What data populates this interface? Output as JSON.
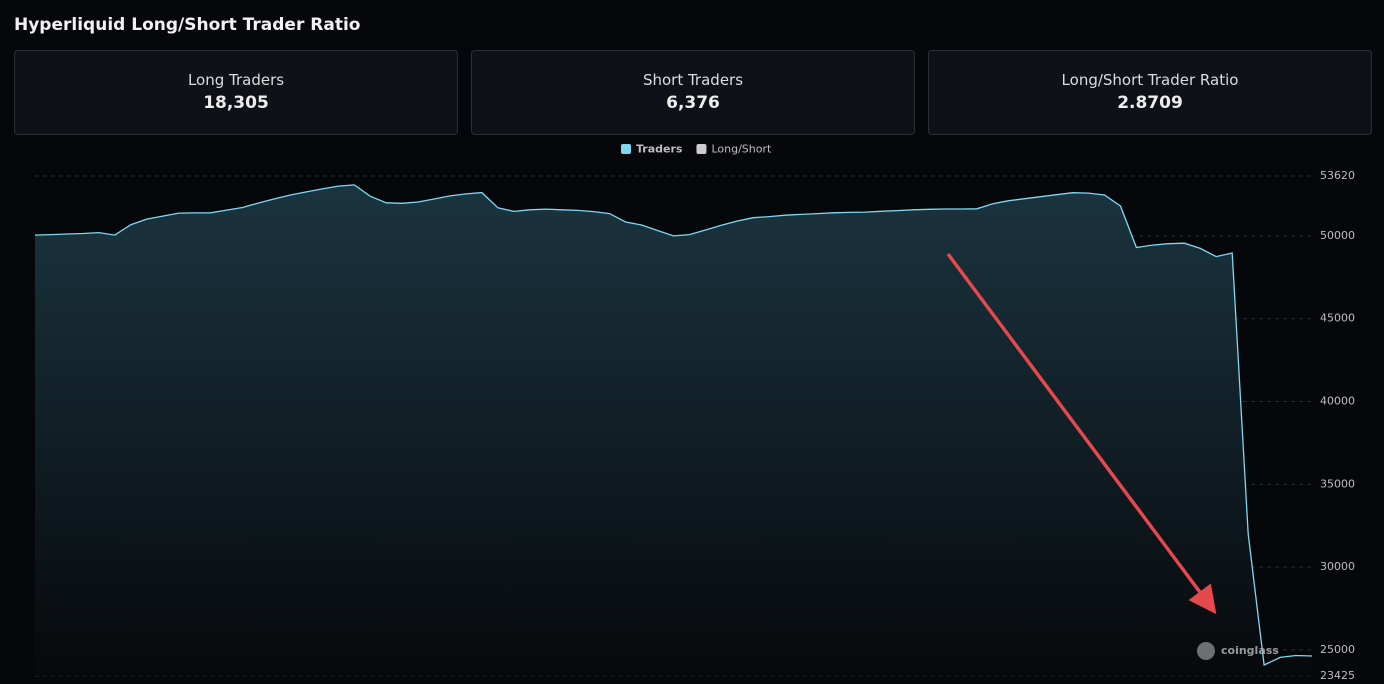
{
  "title": "Hyperliquid Long/Short Trader Ratio",
  "cards": [
    {
      "label": "Long Traders",
      "value": "18,305"
    },
    {
      "label": "Short Traders",
      "value": "6,376"
    },
    {
      "label": "Long/Short Trader Ratio",
      "value": "2.8709"
    }
  ],
  "chart_data": {
    "type": "area",
    "watermark": "coinglass",
    "series": [
      {
        "name": "Traders",
        "color": "#7fd8f0",
        "values": [
          50050,
          50080,
          50120,
          50150,
          50200,
          50050,
          50680,
          51020,
          51200,
          51380,
          51390,
          51400,
          51560,
          51720,
          51990,
          52240,
          52470,
          52660,
          52840,
          53010,
          53080,
          52400,
          52000,
          51970,
          52050,
          52230,
          52420,
          52540,
          52620,
          51700,
          51480,
          51580,
          51620,
          51580,
          51540,
          51470,
          51350,
          50840,
          50660,
          50330,
          50000,
          50080,
          50360,
          50650,
          50900,
          51100,
          51170,
          51250,
          51300,
          51350,
          51400,
          51420,
          51440,
          51490,
          51530,
          51580,
          51610,
          51630,
          51630,
          51640,
          51950,
          52130,
          52250,
          52370,
          52490,
          52610,
          52590,
          52470,
          51800,
          49300,
          49450,
          49530,
          49560,
          49250,
          48750,
          48970,
          32000,
          24090,
          24550,
          24660,
          24630
        ]
      },
      {
        "name": "Long/Short",
        "color": "#cccccc",
        "hidden": true
      }
    ],
    "ylim": [
      23425,
      53620
    ],
    "yticks": [
      23425,
      25000,
      30000,
      35000,
      40000,
      45000,
      50000,
      53620
    ],
    "grid": true
  }
}
